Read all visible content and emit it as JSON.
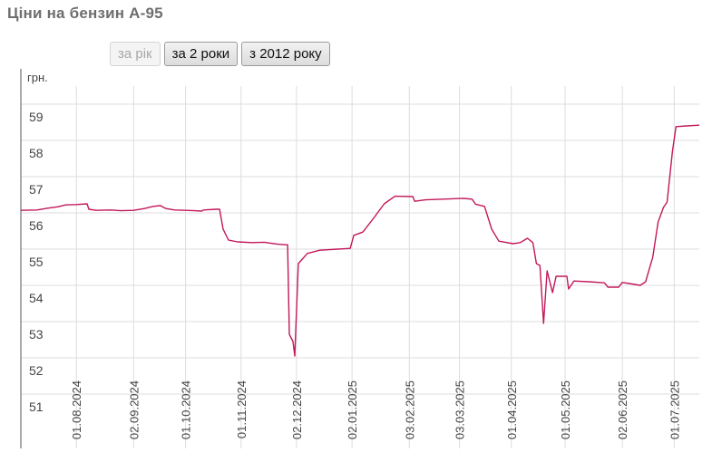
{
  "header": {
    "title": "Ціни на бензин А-95"
  },
  "range_buttons": [
    {
      "label": "за рік",
      "enabled": false
    },
    {
      "label": "за 2 роки",
      "enabled": true
    },
    {
      "label": "з 2012 року",
      "enabled": true
    }
  ],
  "colors": {
    "line": "#c2185b",
    "grid": "#dddddd",
    "axis": "#555555",
    "label": "#444444"
  },
  "chart_data": {
    "type": "line",
    "title": "Ціни на бензин А-95",
    "ylabel": "грн.",
    "ylim": [
      50.8,
      60
    ],
    "yticks": [
      51,
      52,
      53,
      54,
      55,
      56,
      57,
      58,
      59
    ],
    "x_domain": [
      "2024-07-01",
      "2025-07-15"
    ],
    "xticks": [
      {
        "date": "2024-08-01",
        "label": "01.08.2024"
      },
      {
        "date": "2024-09-02",
        "label": "02.09.2024"
      },
      {
        "date": "2024-10-01",
        "label": "01.10.2024"
      },
      {
        "date": "2024-11-01",
        "label": "01.11.2024"
      },
      {
        "date": "2024-12-02",
        "label": "02.12.2024"
      },
      {
        "date": "2025-01-02",
        "label": "02.01.2025"
      },
      {
        "date": "2025-02-03",
        "label": "03.02.2025"
      },
      {
        "date": "2025-03-03",
        "label": "03.03.2025"
      },
      {
        "date": "2025-04-01",
        "label": "01.04.2025"
      },
      {
        "date": "2025-05-01",
        "label": "01.05.2025"
      },
      {
        "date": "2025-06-02",
        "label": "02.06.2025"
      },
      {
        "date": "2025-07-01",
        "label": "01.07.2025"
      }
    ],
    "grid": true,
    "series": [
      {
        "points": [
          [
            "2024-07-01",
            56.57
          ],
          [
            "2024-07-10",
            56.58
          ],
          [
            "2024-07-16",
            56.63
          ],
          [
            "2024-07-22",
            56.67
          ],
          [
            "2024-07-26",
            56.72
          ],
          [
            "2024-08-01",
            56.73
          ],
          [
            "2024-08-07",
            56.75
          ],
          [
            "2024-08-08",
            56.6
          ],
          [
            "2024-08-12",
            56.57
          ],
          [
            "2024-08-20",
            56.58
          ],
          [
            "2024-08-26",
            56.56
          ],
          [
            "2024-09-02",
            56.57
          ],
          [
            "2024-09-08",
            56.62
          ],
          [
            "2024-09-13",
            56.68
          ],
          [
            "2024-09-17",
            56.7
          ],
          [
            "2024-09-20",
            56.62
          ],
          [
            "2024-09-25",
            56.58
          ],
          [
            "2024-10-01",
            56.57
          ],
          [
            "2024-10-06",
            56.56
          ],
          [
            "2024-10-10",
            56.55
          ],
          [
            "2024-10-11",
            56.58
          ],
          [
            "2024-10-18",
            56.6
          ],
          [
            "2024-10-20",
            56.6
          ],
          [
            "2024-10-22",
            56.05
          ],
          [
            "2024-10-25",
            55.75
          ],
          [
            "2024-10-30",
            55.7
          ],
          [
            "2024-11-07",
            55.68
          ],
          [
            "2024-11-14",
            55.69
          ],
          [
            "2024-11-21",
            55.64
          ],
          [
            "2024-11-26",
            55.62
          ],
          [
            "2024-11-27",
            55.62
          ],
          [
            "2024-11-28",
            53.15
          ],
          [
            "2024-11-30",
            52.95
          ],
          [
            "2024-12-01",
            52.55
          ],
          [
            "2024-12-03",
            55.1
          ],
          [
            "2024-12-08",
            55.38
          ],
          [
            "2024-12-15",
            55.47
          ],
          [
            "2024-12-25",
            55.5
          ],
          [
            "2025-01-01",
            55.52
          ],
          [
            "2025-01-03",
            55.88
          ],
          [
            "2025-01-08",
            55.97
          ],
          [
            "2025-01-14",
            56.35
          ],
          [
            "2025-01-20",
            56.75
          ],
          [
            "2025-01-26",
            56.96
          ],
          [
            "2025-02-05",
            56.95
          ],
          [
            "2025-02-06",
            56.82
          ],
          [
            "2025-02-12",
            56.86
          ],
          [
            "2025-02-22",
            56.88
          ],
          [
            "2025-03-05",
            56.9
          ],
          [
            "2025-03-10",
            56.88
          ],
          [
            "2025-03-12",
            56.74
          ],
          [
            "2025-03-17",
            56.68
          ],
          [
            "2025-03-21",
            56.05
          ],
          [
            "2025-03-25",
            55.72
          ],
          [
            "2025-04-02",
            55.65
          ],
          [
            "2025-04-06",
            55.68
          ],
          [
            "2025-04-10",
            55.8
          ],
          [
            "2025-04-13",
            55.68
          ],
          [
            "2025-04-15",
            55.1
          ],
          [
            "2025-04-17",
            55.05
          ],
          [
            "2025-04-19",
            53.45
          ],
          [
            "2025-04-21",
            54.9
          ],
          [
            "2025-04-24",
            54.3
          ],
          [
            "2025-04-26",
            54.75
          ],
          [
            "2025-05-02",
            54.75
          ],
          [
            "2025-05-03",
            54.4
          ],
          [
            "2025-05-06",
            54.62
          ],
          [
            "2025-05-14",
            54.6
          ],
          [
            "2025-05-23",
            54.57
          ],
          [
            "2025-05-25",
            54.45
          ],
          [
            "2025-05-31",
            54.45
          ],
          [
            "2025-06-02",
            54.58
          ],
          [
            "2025-06-06",
            54.55
          ],
          [
            "2025-06-12",
            54.5
          ],
          [
            "2025-06-15",
            54.6
          ],
          [
            "2025-06-19",
            55.28
          ],
          [
            "2025-06-22",
            56.25
          ],
          [
            "2025-06-25",
            56.65
          ],
          [
            "2025-06-27",
            56.8
          ],
          [
            "2025-06-30",
            58.2
          ],
          [
            "2025-07-02",
            58.88
          ],
          [
            "2025-07-08",
            58.9
          ],
          [
            "2025-07-15",
            58.92
          ]
        ]
      }
    ]
  }
}
